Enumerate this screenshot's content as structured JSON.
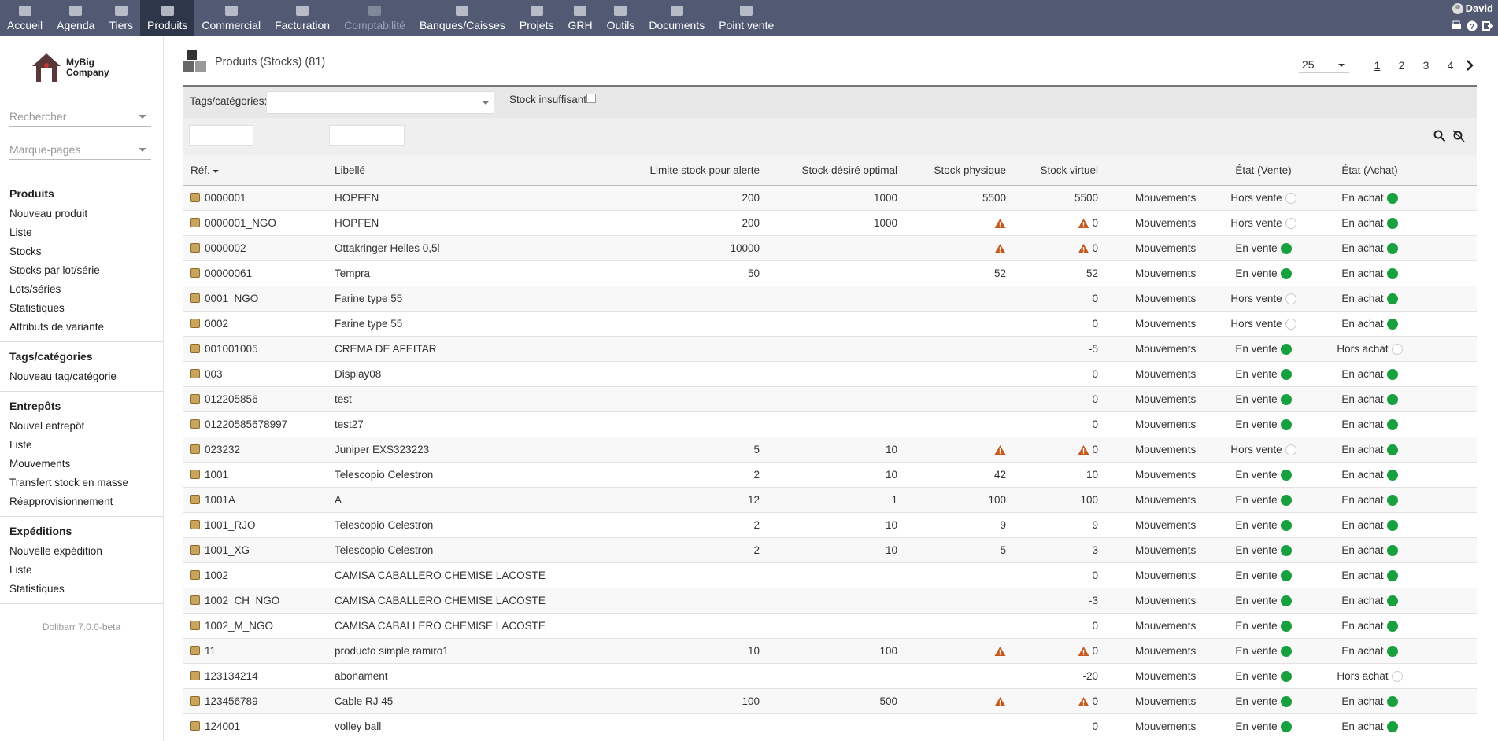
{
  "topbar": {
    "menu": [
      {
        "label": "Accueil"
      },
      {
        "label": "Agenda"
      },
      {
        "label": "Tiers"
      },
      {
        "label": "Produits",
        "active": true
      },
      {
        "label": "Commercial"
      },
      {
        "label": "Facturation"
      },
      {
        "label": "Comptabilité",
        "disabled": true
      },
      {
        "label": "Banques/Caisses"
      },
      {
        "label": "Projets"
      },
      {
        "label": "GRH"
      },
      {
        "label": "Outils"
      },
      {
        "label": "Documents"
      },
      {
        "label": "Point vente"
      }
    ],
    "user": "David"
  },
  "sidebar": {
    "logo": {
      "line1": "MyBig",
      "line2": "Company"
    },
    "search": "Rechercher",
    "bookmarks": "Marque-pages",
    "sections": [
      {
        "title": "Produits",
        "links": [
          "Nouveau produit",
          "Liste",
          "Stocks",
          "Stocks par lot/série",
          "Lots/séries",
          "Statistiques",
          "Attributs de variante"
        ]
      },
      {
        "title": "Tags/catégories",
        "links": [
          "Nouveau tag/catégorie"
        ]
      },
      {
        "title": "Entrepôts",
        "links": [
          "Nouvel entrepôt",
          "Liste",
          "Mouvements",
          "Transfert stock en masse",
          "Réapprovisionnement"
        ]
      },
      {
        "title": "Expéditions",
        "links": [
          "Nouvelle expédition",
          "Liste",
          "Statistiques"
        ]
      }
    ],
    "version": "Dolibarr 7.0.0-beta"
  },
  "page": {
    "title": "Produits (Stocks) (81)",
    "page_size": 25,
    "pages": [
      1,
      2,
      3,
      4
    ],
    "current_page": 0
  },
  "filters": {
    "tags_label": "Tags/catégories:",
    "low_stock_label": "Stock insuffisant"
  },
  "table": {
    "columns": {
      "ref": "Réf.",
      "label": "Libellé",
      "limit": "Limite stock pour alerte",
      "desired": "Stock désiré optimal",
      "physical": "Stock physique",
      "virtual": "Stock virtuel",
      "sale": "État (Vente)",
      "buy": "État (Achat)"
    },
    "rows": [
      {
        "ref": "0000001",
        "label": "HOPFEN",
        "limit": 200,
        "desired": 1000,
        "physical": 5500,
        "virtual": 5500,
        "warn": false,
        "movements": "Mouvements",
        "sale": "Hors vente",
        "sale_on": false,
        "buy": "En achat",
        "buy_on": true
      },
      {
        "ref": "0000001_NGO",
        "label": "HOPFEN",
        "limit": 200,
        "desired": 1000,
        "physical": null,
        "virtual": 0,
        "warn": true,
        "movements": "Mouvements",
        "sale": "Hors vente",
        "sale_on": false,
        "buy": "En achat",
        "buy_on": true
      },
      {
        "ref": "0000002",
        "label": "Ottakringer Helles 0,5l",
        "limit": 10000,
        "desired": null,
        "physical": null,
        "virtual": 0,
        "warn": true,
        "movements": "Mouvements",
        "sale": "En vente",
        "sale_on": true,
        "buy": "En achat",
        "buy_on": true
      },
      {
        "ref": "00000061",
        "label": "Tempra",
        "limit": 50,
        "desired": null,
        "physical": 52,
        "virtual": 52,
        "warn": false,
        "movements": "Mouvements",
        "sale": "En vente",
        "sale_on": true,
        "buy": "En achat",
        "buy_on": true
      },
      {
        "ref": "0001_NGO",
        "label": "Farine type 55",
        "limit": null,
        "desired": null,
        "physical": null,
        "virtual": 0,
        "warn": false,
        "movements": "Mouvements",
        "sale": "Hors vente",
        "sale_on": false,
        "buy": "En achat",
        "buy_on": true
      },
      {
        "ref": "0002",
        "label": "Farine type 55",
        "limit": null,
        "desired": null,
        "physical": null,
        "virtual": 0,
        "warn": false,
        "movements": "Mouvements",
        "sale": "Hors vente",
        "sale_on": false,
        "buy": "En achat",
        "buy_on": true
      },
      {
        "ref": "001001005",
        "label": "CREMA DE AFEITAR",
        "limit": null,
        "desired": null,
        "physical": null,
        "virtual": -5,
        "warn": false,
        "movements": "Mouvements",
        "sale": "En vente",
        "sale_on": true,
        "buy": "Hors achat",
        "buy_on": false
      },
      {
        "ref": "003",
        "label": "Display08",
        "limit": null,
        "desired": null,
        "physical": null,
        "virtual": 0,
        "warn": false,
        "movements": "Mouvements",
        "sale": "En vente",
        "sale_on": true,
        "buy": "En achat",
        "buy_on": true
      },
      {
        "ref": "012205856",
        "label": "test",
        "limit": null,
        "desired": null,
        "physical": null,
        "virtual": 0,
        "warn": false,
        "movements": "Mouvements",
        "sale": "En vente",
        "sale_on": true,
        "buy": "En achat",
        "buy_on": true
      },
      {
        "ref": "01220585678997",
        "label": "test27",
        "limit": null,
        "desired": null,
        "physical": null,
        "virtual": 0,
        "warn": false,
        "movements": "Mouvements",
        "sale": "En vente",
        "sale_on": true,
        "buy": "En achat",
        "buy_on": true
      },
      {
        "ref": "023232",
        "label": "Juniper EXS323223",
        "limit": 5,
        "desired": 10,
        "physical": null,
        "virtual": 0,
        "warn": true,
        "movements": "Mouvements",
        "sale": "Hors vente",
        "sale_on": false,
        "buy": "En achat",
        "buy_on": true
      },
      {
        "ref": "1001",
        "label": "Telescopio Celestron",
        "limit": 2,
        "desired": 10,
        "physical": 42,
        "virtual": 10,
        "warn": false,
        "movements": "Mouvements",
        "sale": "En vente",
        "sale_on": true,
        "buy": "En achat",
        "buy_on": true
      },
      {
        "ref": "1001A",
        "label": "A",
        "limit": 12,
        "desired": 1,
        "physical": 100,
        "virtual": 100,
        "warn": false,
        "movements": "Mouvements",
        "sale": "En vente",
        "sale_on": true,
        "buy": "En achat",
        "buy_on": true
      },
      {
        "ref": "1001_RJO",
        "label": "Telescopio Celestron",
        "limit": 2,
        "desired": 10,
        "physical": 9,
        "virtual": 9,
        "warn": false,
        "movements": "Mouvements",
        "sale": "En vente",
        "sale_on": true,
        "buy": "En achat",
        "buy_on": true
      },
      {
        "ref": "1001_XG",
        "label": "Telescopio Celestron",
        "limit": 2,
        "desired": 10,
        "physical": 5,
        "virtual": 3,
        "warn": false,
        "movements": "Mouvements",
        "sale": "En vente",
        "sale_on": true,
        "buy": "En achat",
        "buy_on": true
      },
      {
        "ref": "1002",
        "label": "CAMISA CABALLERO CHEMISE LACOSTE",
        "limit": null,
        "desired": null,
        "physical": null,
        "virtual": 0,
        "warn": false,
        "movements": "Mouvements",
        "sale": "En vente",
        "sale_on": true,
        "buy": "En achat",
        "buy_on": true
      },
      {
        "ref": "1002_CH_NGO",
        "label": "CAMISA CABALLERO CHEMISE LACOSTE",
        "limit": null,
        "desired": null,
        "physical": null,
        "virtual": -3,
        "warn": false,
        "movements": "Mouvements",
        "sale": "En vente",
        "sale_on": true,
        "buy": "En achat",
        "buy_on": true
      },
      {
        "ref": "1002_M_NGO",
        "label": "CAMISA CABALLERO CHEMISE LACOSTE",
        "limit": null,
        "desired": null,
        "physical": null,
        "virtual": 0,
        "warn": false,
        "movements": "Mouvements",
        "sale": "En vente",
        "sale_on": true,
        "buy": "En achat",
        "buy_on": true
      },
      {
        "ref": "11",
        "label": "producto simple ramiro1",
        "limit": 10,
        "desired": 100,
        "physical": null,
        "virtual": 0,
        "warn": true,
        "movements": "Mouvements",
        "sale": "En vente",
        "sale_on": true,
        "buy": "En achat",
        "buy_on": true
      },
      {
        "ref": "123134214",
        "label": "abonament",
        "limit": null,
        "desired": null,
        "physical": null,
        "virtual": -20,
        "warn": false,
        "movements": "Mouvements",
        "sale": "En vente",
        "sale_on": true,
        "buy": "Hors achat",
        "buy_on": false
      },
      {
        "ref": "123456789",
        "label": "Cable RJ 45",
        "limit": 100,
        "desired": 500,
        "physical": null,
        "virtual": 0,
        "warn": true,
        "movements": "Mouvements",
        "sale": "En vente",
        "sale_on": true,
        "buy": "En achat",
        "buy_on": true
      },
      {
        "ref": "124001",
        "label": "volley ball",
        "limit": null,
        "desired": null,
        "physical": null,
        "virtual": 0,
        "warn": false,
        "movements": "Mouvements",
        "sale": "En vente",
        "sale_on": true,
        "buy": "En achat",
        "buy_on": true
      }
    ]
  }
}
